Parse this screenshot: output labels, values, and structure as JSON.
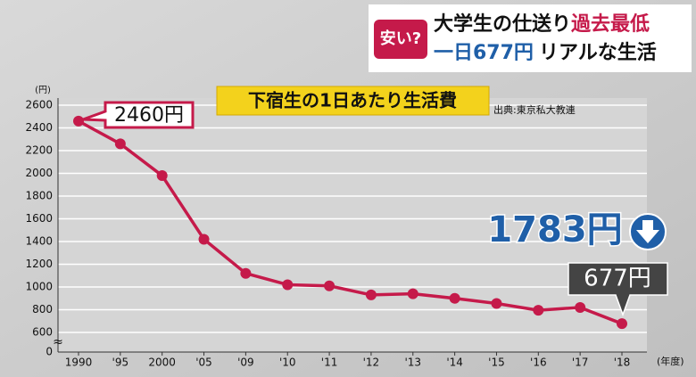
{
  "banner": {
    "badge": "安い?",
    "line1_a": "大学生の仕送り",
    "line1_b": "過去最低",
    "line2_a": "一日677円",
    "line2_b": "リアルな生活"
  },
  "chart_data": {
    "type": "line",
    "title": "下宿生の1日あたり生活費",
    "source": "出典:東京私大教連",
    "ylabel": "(円)",
    "xlabel": "(年度)",
    "categories": [
      "1990",
      "'95",
      "2000",
      "'05",
      "'09",
      "'10",
      "'11",
      "'12",
      "'13",
      "'14",
      "'15",
      "'16",
      "'17",
      "'18"
    ],
    "values": [
      2460,
      2260,
      1980,
      1420,
      1120,
      1020,
      1010,
      930,
      940,
      900,
      855,
      795,
      820,
      677
    ],
    "color": "#c51a4a",
    "ylim": [
      600,
      2600
    ],
    "yticks": [
      600,
      800,
      1000,
      1200,
      1400,
      1600,
      1800,
      2000,
      2200,
      2400,
      2600
    ],
    "ybreak_tick": 0,
    "grid": true,
    "start_label": "2460円",
    "highlight_label": "1783円",
    "end_label": "677円"
  }
}
